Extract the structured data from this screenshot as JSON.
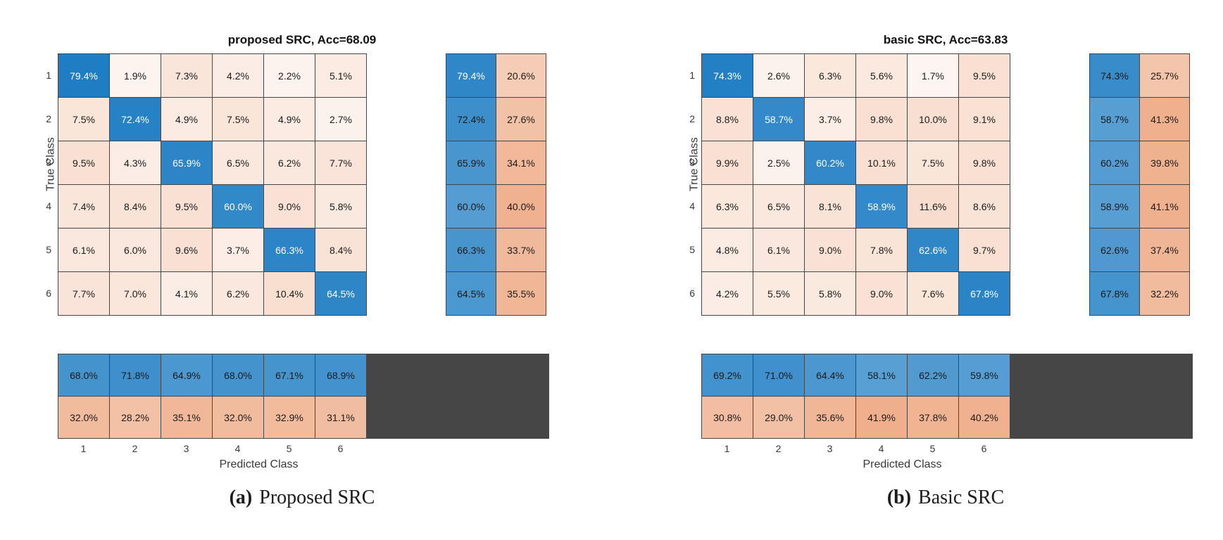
{
  "colors": {
    "diagonal_blue_base": "#0b72be",
    "offdiag_salmon_base": "#e27234",
    "grid_border": "#464646",
    "text_dark": "#1a1a1a",
    "text_light": "#ffffff"
  },
  "chart_data": [
    {
      "type": "heatmap",
      "title": "proposed SRC, Acc=68.09",
      "xlabel": "Predicted Class",
      "ylabel": "True Class",
      "x_ticks": [
        "1",
        "2",
        "3",
        "4",
        "5",
        "6"
      ],
      "y_ticks": [
        "1",
        "2",
        "3",
        "4",
        "5",
        "6"
      ],
      "matrix_percent": [
        [
          79.4,
          1.9,
          7.3,
          4.2,
          2.2,
          5.1
        ],
        [
          7.5,
          72.4,
          4.9,
          7.5,
          4.9,
          2.7
        ],
        [
          9.5,
          4.3,
          65.9,
          6.5,
          6.2,
          7.7
        ],
        [
          7.4,
          8.4,
          9.5,
          60.0,
          9.0,
          5.8
        ],
        [
          6.1,
          6.0,
          9.6,
          3.7,
          66.3,
          8.4
        ],
        [
          7.7,
          7.0,
          4.1,
          6.2,
          10.4,
          64.5
        ]
      ],
      "row_summary_percent": [
        [
          79.4,
          20.6
        ],
        [
          72.4,
          27.6
        ],
        [
          65.9,
          34.1
        ],
        [
          60.0,
          40.0
        ],
        [
          66.3,
          33.7
        ],
        [
          64.5,
          35.5
        ]
      ],
      "column_summary_percent": [
        [
          68.0,
          71.8,
          64.9,
          68.0,
          67.1,
          68.9
        ],
        [
          32.0,
          28.2,
          35.1,
          32.0,
          32.9,
          31.1
        ]
      ],
      "caption": {
        "label": "(a)",
        "text": "Proposed SRC"
      }
    },
    {
      "type": "heatmap",
      "title": "basic SRC, Acc=63.83",
      "xlabel": "Predicted Class",
      "ylabel": "True Class",
      "x_ticks": [
        "1",
        "2",
        "3",
        "4",
        "5",
        "6"
      ],
      "y_ticks": [
        "1",
        "2",
        "3",
        "4",
        "5",
        "6"
      ],
      "matrix_percent": [
        [
          74.3,
          2.6,
          6.3,
          5.6,
          1.7,
          9.5
        ],
        [
          8.8,
          58.7,
          3.7,
          9.8,
          10.0,
          9.1
        ],
        [
          9.9,
          2.5,
          60.2,
          10.1,
          7.5,
          9.8
        ],
        [
          6.3,
          6.5,
          8.1,
          58.9,
          11.6,
          8.6
        ],
        [
          4.8,
          6.1,
          9.0,
          7.8,
          62.6,
          9.7
        ],
        [
          4.2,
          5.5,
          5.8,
          9.0,
          7.6,
          67.8
        ]
      ],
      "row_summary_percent": [
        [
          74.3,
          25.7
        ],
        [
          58.7,
          41.3
        ],
        [
          60.2,
          39.8
        ],
        [
          58.9,
          41.1
        ],
        [
          62.6,
          37.4
        ],
        [
          67.8,
          32.2
        ]
      ],
      "column_summary_percent": [
        [
          69.2,
          71.0,
          64.4,
          58.1,
          62.2,
          59.8
        ],
        [
          30.8,
          29.0,
          35.6,
          41.9,
          37.8,
          40.2
        ]
      ],
      "caption": {
        "label": "(b)",
        "text": "Basic SRC"
      }
    }
  ]
}
